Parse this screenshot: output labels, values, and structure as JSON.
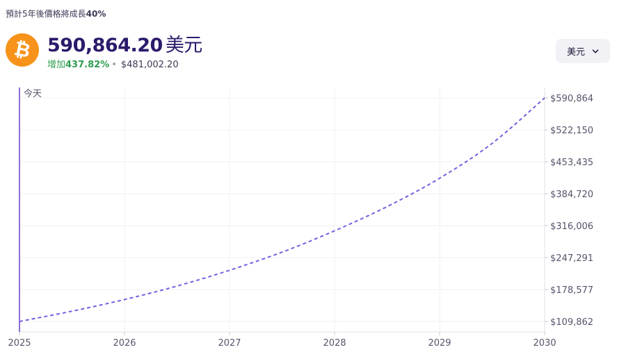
{
  "header": {
    "subtitle_prefix": "預計5年後價格將成長",
    "subtitle_pct": "40%",
    "coin_icon": "bitcoin-icon",
    "coin_color": "#f7931a",
    "price": "590,864.20",
    "price_currency": "美元",
    "change_prefix": "增加",
    "change_pct": "437.82%",
    "change_dot": "•",
    "base_price": "$481,002.20"
  },
  "currency_selector": {
    "label": "美元",
    "icon": "chevron-down-icon"
  },
  "chart_data": {
    "type": "line",
    "today_label": "今天",
    "x_ticks": [
      "2025",
      "2026",
      "2027",
      "2028",
      "2029",
      "2030"
    ],
    "xlim": [
      2025,
      2030
    ],
    "y_ticks": [
      "$109,862",
      "$178,577",
      "$247,291",
      "$316,006",
      "$384,720",
      "$453,435",
      "$522,150",
      "$590,864"
    ],
    "y_tick_values": [
      109862,
      178577,
      247291,
      316006,
      384720,
      453435,
      522150,
      590864
    ],
    "ylim": [
      109862,
      590864
    ],
    "grid": true,
    "line_color": "#7b5ce0",
    "line_style": "dashed",
    "series": [
      {
        "x": [
          2025.0,
          2025.5,
          2026.0,
          2026.5,
          2027.0,
          2027.5,
          2028.0,
          2028.5,
          2029.0,
          2029.5,
          2030.0
        ],
        "y": [
          109862,
          132000,
          157000,
          186000,
          220000,
          259000,
          305000,
          357000,
          418000,
          493000,
          590864
        ]
      }
    ]
  }
}
